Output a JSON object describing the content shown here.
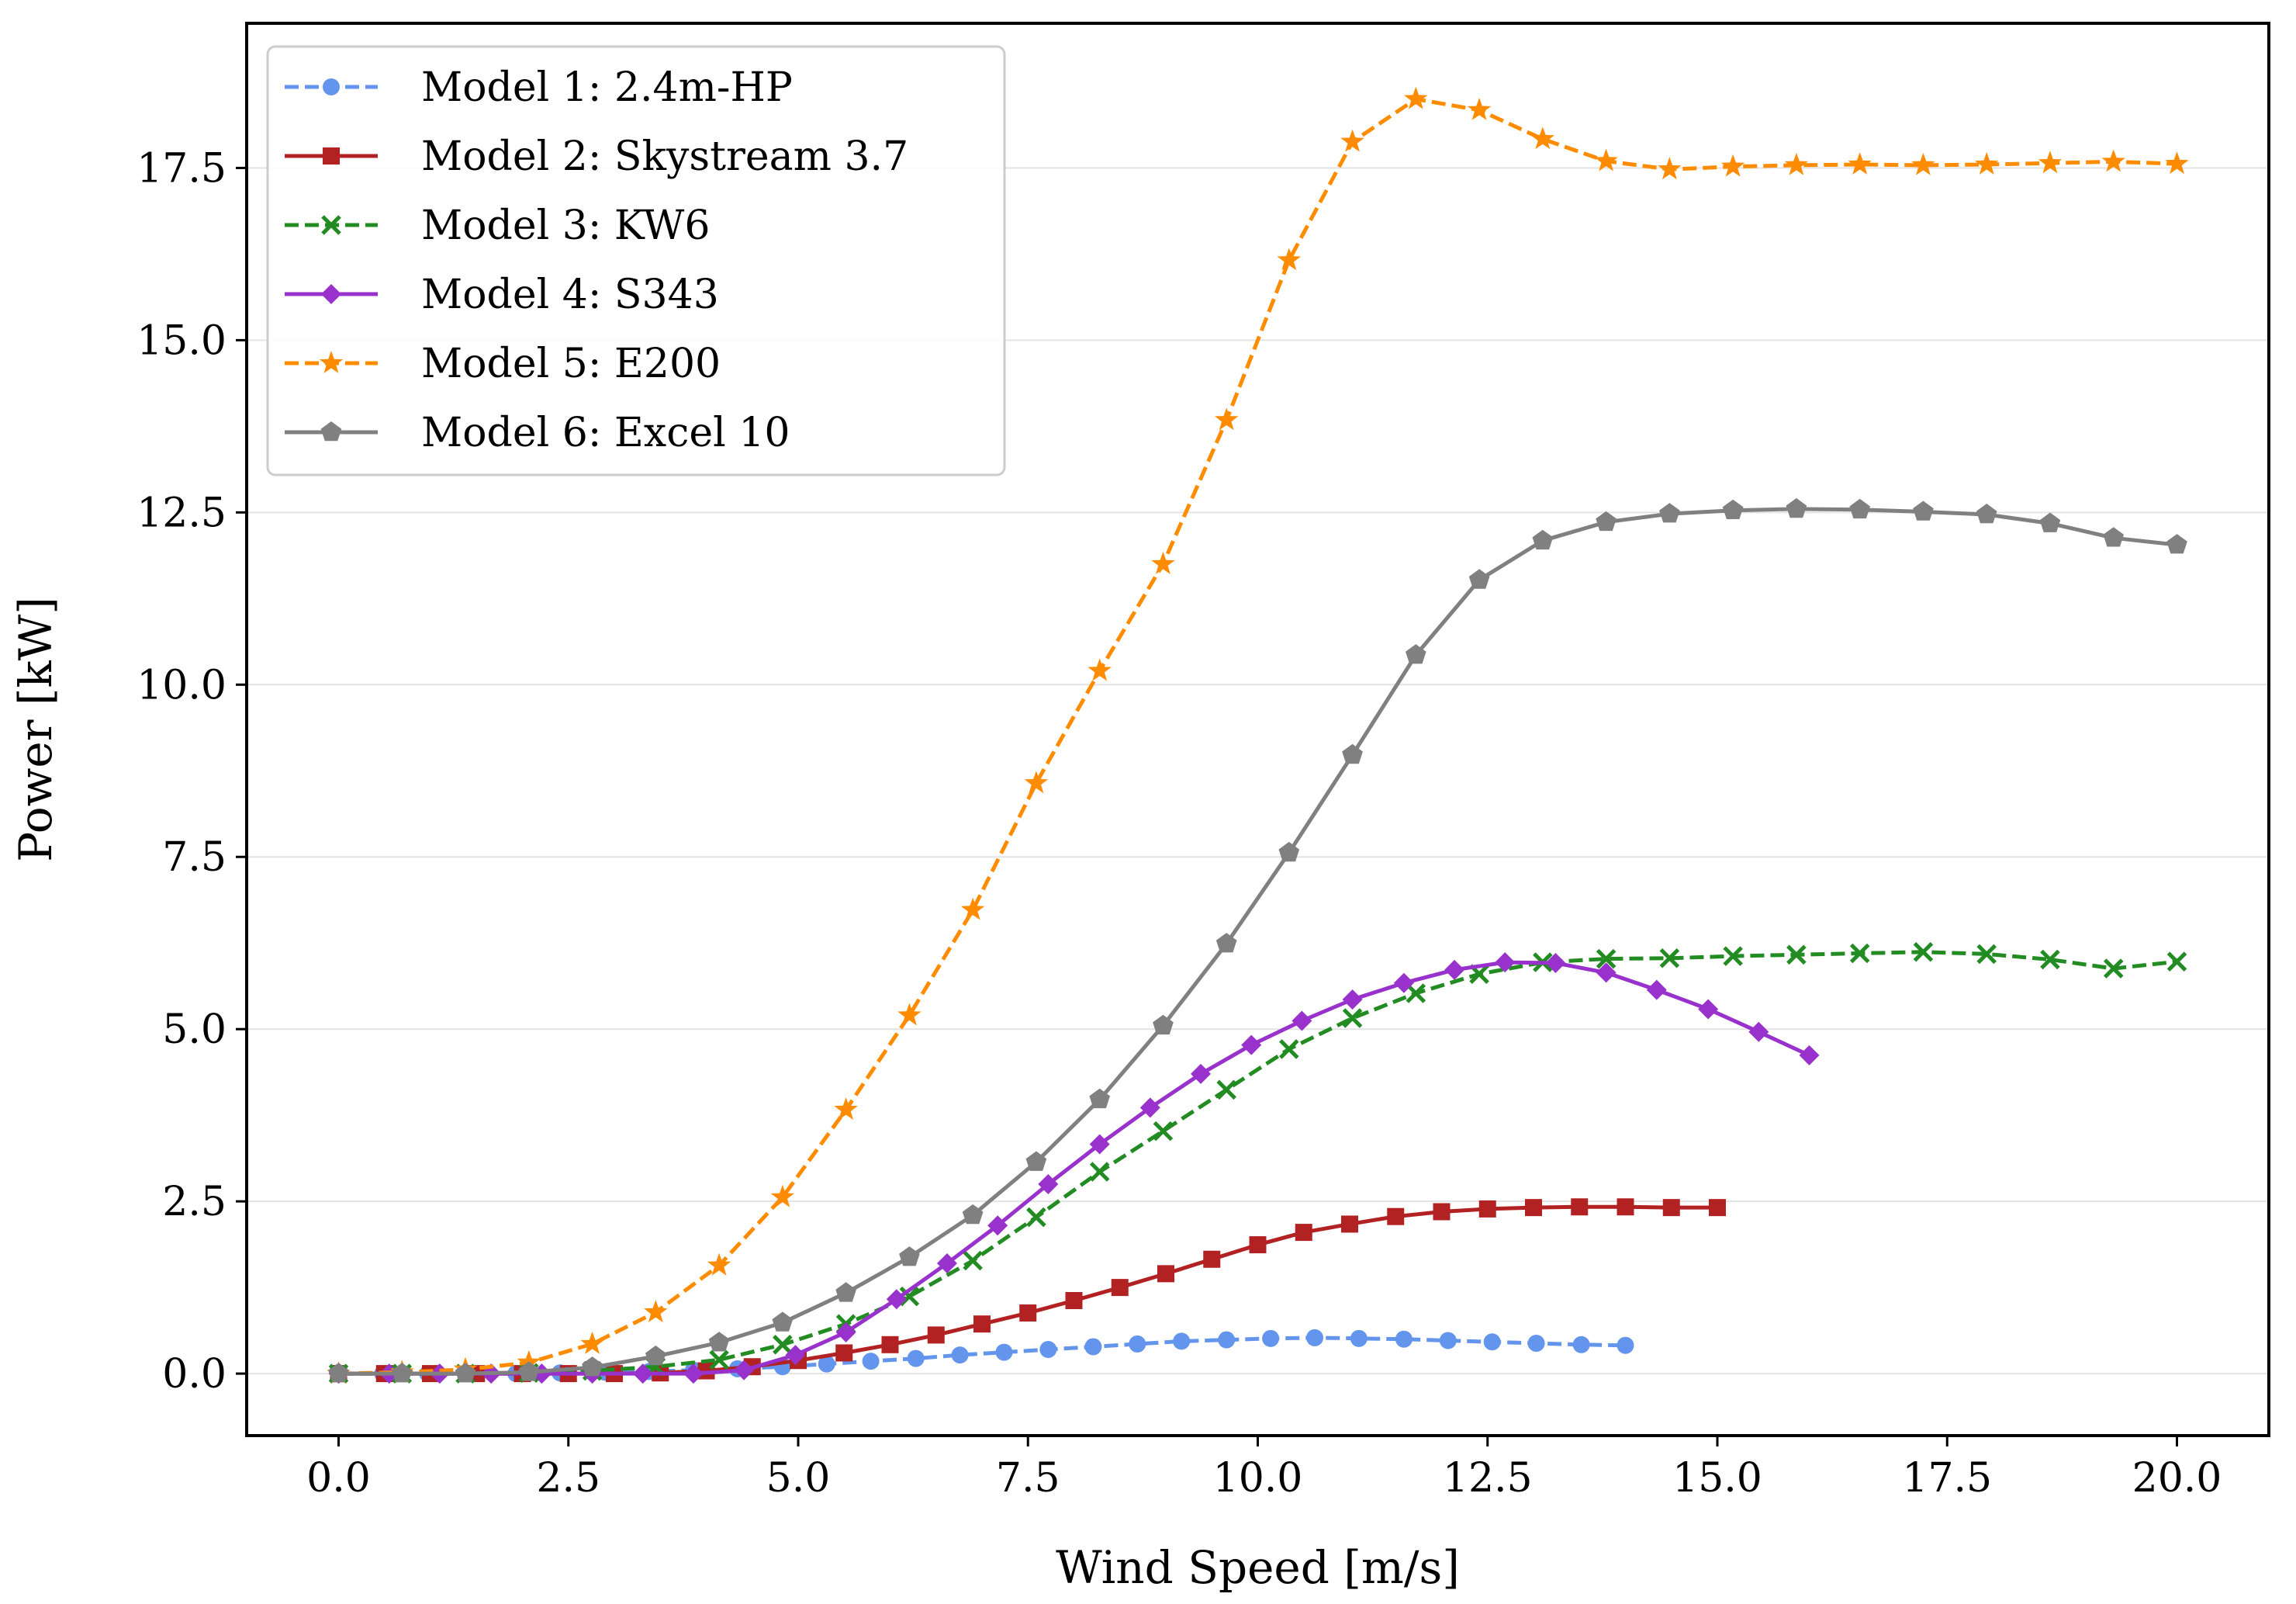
{
  "chart_data": {
    "type": "line",
    "title": "",
    "xlabel": "Wind Speed [m/s]",
    "ylabel": "Power [kW]",
    "xlim": [
      -1.0,
      21.0
    ],
    "ylim": [
      -0.9,
      19.6
    ],
    "x_ticks": [
      0.0,
      2.5,
      5.0,
      7.5,
      10.0,
      12.5,
      15.0,
      17.5,
      20.0
    ],
    "x_tick_labels": [
      "0.0",
      "2.5",
      "5.0",
      "7.5",
      "10.0",
      "12.5",
      "15.0",
      "17.5",
      "20.0"
    ],
    "y_ticks": [
      0.0,
      2.5,
      5.0,
      7.5,
      10.0,
      12.5,
      15.0,
      17.5
    ],
    "y_tick_labels": [
      "0.0",
      "2.5",
      "5.0",
      "7.5",
      "10.0",
      "12.5",
      "15.0",
      "17.5"
    ],
    "grid": "horizontal",
    "legend_position": "top-left",
    "series": [
      {
        "name": "Model 1: 2.4m-HP",
        "color": "#6495ED",
        "dash": "dashed",
        "marker": "circle",
        "x": [
          0.0,
          0.48,
          0.97,
          1.45,
          1.93,
          2.41,
          2.9,
          3.38,
          3.86,
          4.34,
          4.83,
          5.31,
          5.79,
          6.28,
          6.76,
          7.24,
          7.72,
          8.21,
          8.69,
          9.17,
          9.66,
          10.14,
          10.62,
          11.1,
          11.59,
          12.07,
          12.55,
          13.03,
          13.52,
          14.0
        ],
        "values": [
          0.0,
          0.0,
          0.0,
          0.0,
          0.0,
          0.01,
          0.02,
          0.03,
          0.05,
          0.07,
          0.1,
          0.14,
          0.18,
          0.22,
          0.27,
          0.31,
          0.35,
          0.39,
          0.43,
          0.47,
          0.49,
          0.51,
          0.52,
          0.51,
          0.5,
          0.48,
          0.46,
          0.44,
          0.42,
          0.41
        ]
      },
      {
        "name": "Model 2: Skystream 3.7",
        "color": "#B22222",
        "dash": "solid",
        "marker": "square",
        "x": [
          0.0,
          0.5,
          1.0,
          1.5,
          2.0,
          2.5,
          3.0,
          3.5,
          4.0,
          4.5,
          5.0,
          5.5,
          6.0,
          6.5,
          7.0,
          7.5,
          8.0,
          8.5,
          9.0,
          9.5,
          10.0,
          10.5,
          11.0,
          11.5,
          12.0,
          12.5,
          13.0,
          13.5,
          14.0,
          14.5,
          15.0
        ],
        "values": [
          0.0,
          0.0,
          0.0,
          0.0,
          0.0,
          0.0,
          0.0,
          0.01,
          0.04,
          0.1,
          0.19,
          0.3,
          0.42,
          0.56,
          0.72,
          0.88,
          1.06,
          1.25,
          1.45,
          1.66,
          1.87,
          2.05,
          2.17,
          2.28,
          2.35,
          2.39,
          2.41,
          2.42,
          2.42,
          2.41,
          2.41
        ]
      },
      {
        "name": "Model 3: KW6",
        "color": "#228B22",
        "dash": "dashed",
        "marker": "x",
        "x": [
          0.0,
          0.69,
          1.38,
          2.07,
          2.76,
          3.45,
          4.14,
          4.83,
          5.52,
          6.21,
          6.9,
          7.59,
          8.28,
          8.97,
          9.66,
          10.34,
          11.03,
          11.72,
          12.41,
          13.1,
          13.79,
          14.48,
          15.17,
          15.86,
          16.55,
          17.24,
          17.93,
          18.62,
          19.31,
          20.0
        ],
        "values": [
          0.0,
          0.0,
          0.0,
          0.01,
          0.04,
          0.1,
          0.2,
          0.42,
          0.72,
          1.12,
          1.64,
          2.27,
          2.93,
          3.52,
          4.12,
          4.71,
          5.16,
          5.52,
          5.8,
          5.97,
          6.02,
          6.03,
          6.06,
          6.08,
          6.1,
          6.12,
          6.09,
          6.01,
          5.88,
          5.98
        ]
      },
      {
        "name": "Model 4: S343",
        "color": "#9932CC",
        "dash": "solid",
        "marker": "diamond",
        "x": [
          0.0,
          0.55,
          1.1,
          1.66,
          2.21,
          2.76,
          3.31,
          3.86,
          4.41,
          4.97,
          5.52,
          6.07,
          6.62,
          7.17,
          7.72,
          8.28,
          8.83,
          9.38,
          9.93,
          10.48,
          11.03,
          11.59,
          12.14,
          12.69,
          13.24,
          13.79,
          14.34,
          14.9,
          15.45,
          16.0
        ],
        "values": [
          0.0,
          0.0,
          0.0,
          0.0,
          0.0,
          0.0,
          0.0,
          0.0,
          0.05,
          0.27,
          0.6,
          1.08,
          1.6,
          2.15,
          2.75,
          3.33,
          3.86,
          4.35,
          4.77,
          5.12,
          5.43,
          5.67,
          5.86,
          5.97,
          5.96,
          5.82,
          5.57,
          5.29,
          4.96,
          4.62
        ]
      },
      {
        "name": "Model 5: E200",
        "color": "#FF8C00",
        "dash": "dashed",
        "marker": "star",
        "x": [
          0.0,
          0.69,
          1.38,
          2.07,
          2.76,
          3.45,
          4.14,
          4.83,
          5.52,
          6.21,
          6.9,
          7.59,
          8.28,
          8.97,
          9.66,
          10.34,
          11.03,
          11.72,
          12.41,
          13.1,
          13.79,
          14.48,
          15.17,
          15.86,
          16.55,
          17.24,
          17.93,
          18.62,
          19.31,
          20.0
        ],
        "values": [
          0.0,
          0.02,
          0.06,
          0.16,
          0.43,
          0.89,
          1.57,
          2.56,
          3.83,
          5.2,
          6.73,
          8.57,
          10.2,
          11.75,
          13.84,
          16.16,
          17.88,
          18.5,
          18.34,
          17.92,
          17.6,
          17.48,
          17.52,
          17.54,
          17.55,
          17.54,
          17.55,
          17.57,
          17.59,
          17.56
        ]
      },
      {
        "name": "Model 6: Excel 10",
        "color": "#808080",
        "dash": "solid",
        "marker": "pentagon",
        "x": [
          0.0,
          0.69,
          1.38,
          2.07,
          2.76,
          3.45,
          4.14,
          4.83,
          5.52,
          6.21,
          6.9,
          7.59,
          8.28,
          8.97,
          9.66,
          10.34,
          11.03,
          11.72,
          12.41,
          13.1,
          13.79,
          14.48,
          15.17,
          15.86,
          16.55,
          17.24,
          17.93,
          18.62,
          19.31,
          20.0
        ],
        "values": [
          0.0,
          0.0,
          0.0,
          0.02,
          0.09,
          0.25,
          0.45,
          0.74,
          1.17,
          1.69,
          2.3,
          3.07,
          3.98,
          5.05,
          6.24,
          7.56,
          8.98,
          10.43,
          11.52,
          12.09,
          12.36,
          12.48,
          12.53,
          12.55,
          12.54,
          12.51,
          12.47,
          12.34,
          12.13,
          12.03
        ]
      }
    ]
  }
}
